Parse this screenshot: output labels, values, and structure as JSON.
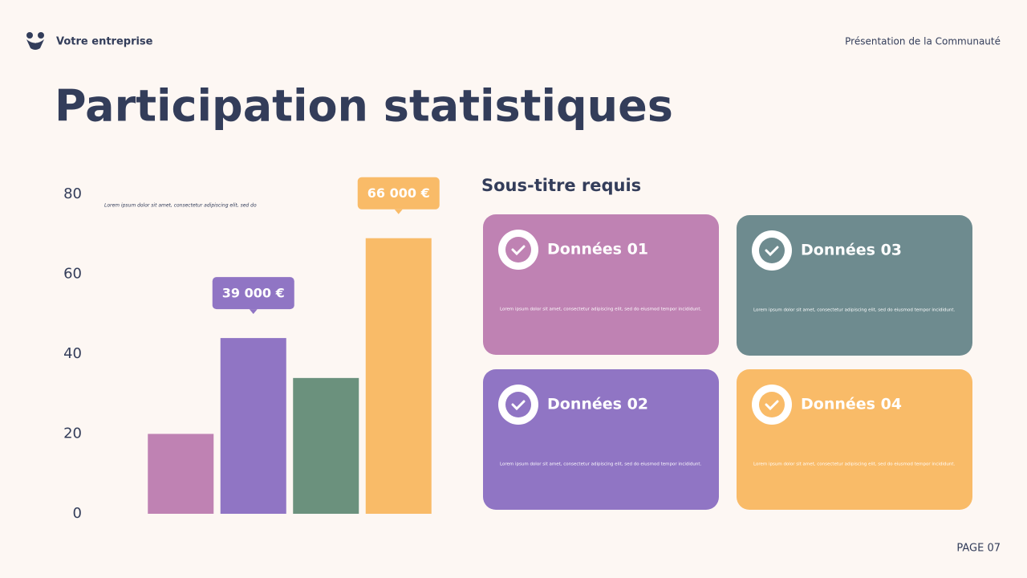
{
  "header": {
    "company": "Votre entreprise",
    "context": "Présentation de la Communauté"
  },
  "title": "Participation statistiques",
  "chart_data": {
    "type": "bar",
    "note": "Lorem ipsum dolor sit amet, consectetur adipiscing elit, sed do",
    "categories": [
      null,
      null,
      null,
      null
    ],
    "values": [
      20,
      44,
      34,
      69
    ],
    "colors": [
      "#bf82b3",
      "#9075c4",
      "#6b917d",
      "#f9bb68"
    ],
    "annotations": [
      "39 000 €",
      "66 000 €"
    ],
    "ylim": [
      0,
      80
    ],
    "yticks": [
      0,
      20,
      40,
      60,
      80
    ],
    "grid": false
  },
  "subtitle": "Sous-titre requis",
  "cards": [
    {
      "title": "Données 01",
      "text": "Lorem ipsum dolor sit amet, consectetur adipiscing elit, sed do eiusmod tempor incididunt."
    },
    {
      "title": "Données 03",
      "text": "Lorem ipsum dolor sit amet, consectetur adipiscing elit, sed do eiusmod tempor incididunt."
    },
    {
      "title": "Données 02",
      "text": "Lorem ipsum dolor sit amet, consectetur adipiscing elit, sed do eiusmod tempor incididunt."
    },
    {
      "title": "Données 04",
      "text": "Lorem ipsum dolor sit amet, consectetur adipiscing elit, sed do eiusmod tempor incididunt."
    }
  ],
  "footer": {
    "page": "PAGE 07"
  }
}
